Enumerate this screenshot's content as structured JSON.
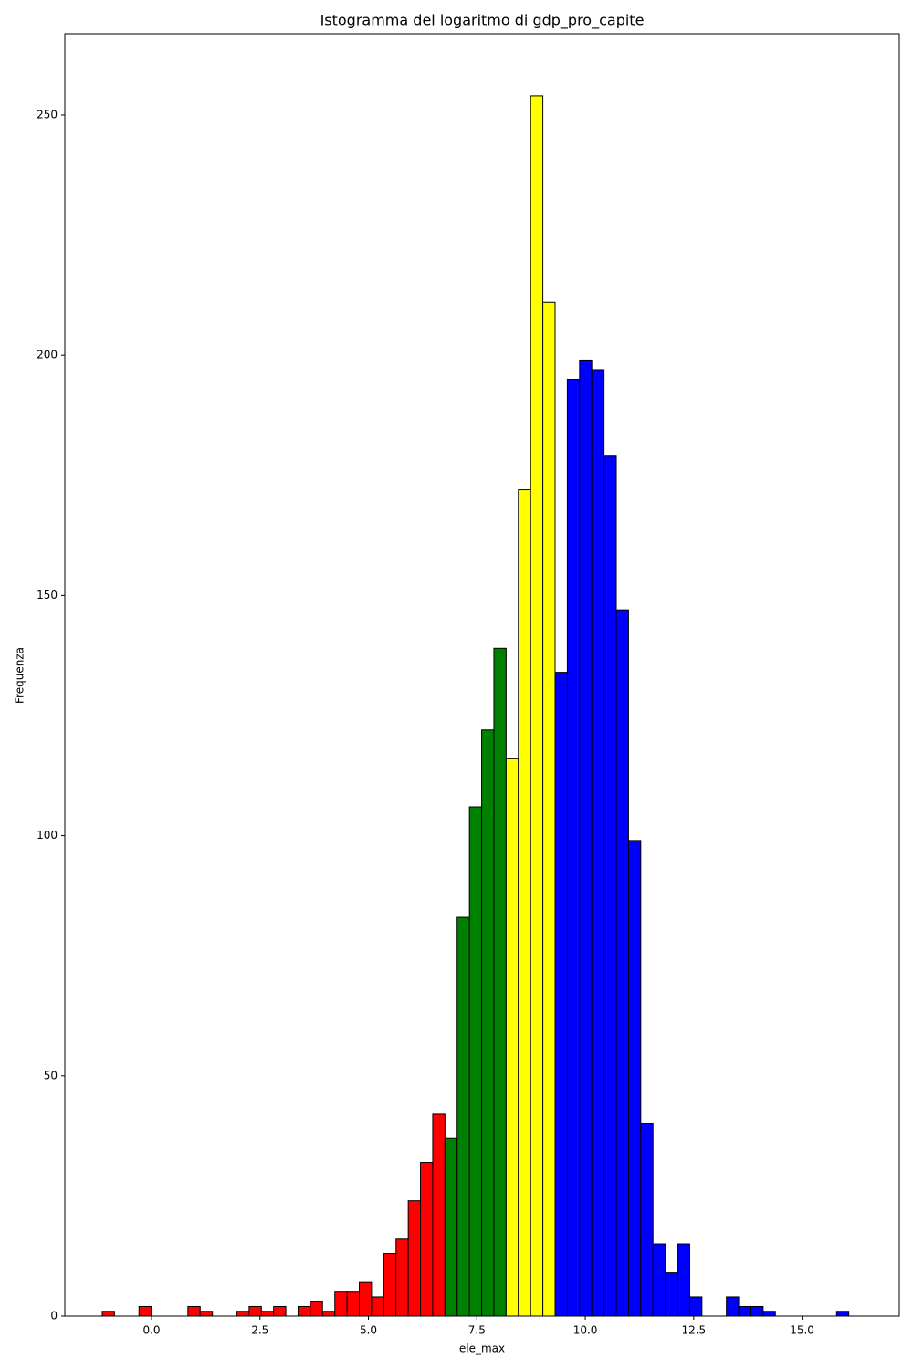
{
  "chart_data": {
    "type": "histogram",
    "title": "Istogramma del logaritmo di gdp_pro_capite",
    "x_label": "ele_max",
    "y_label": "Frequenza",
    "bins": [
      -1.137,
      -0.855,
      -0.572,
      -0.29,
      -0.008,
      0.274,
      0.556,
      0.838,
      1.121,
      1.403,
      1.685,
      1.967,
      2.249,
      2.532,
      2.814,
      3.096,
      3.378,
      3.66,
      3.942,
      4.225,
      4.507,
      4.789,
      5.071,
      5.353,
      5.636,
      5.918,
      6.2,
      6.482,
      6.764,
      7.046,
      7.329,
      7.611,
      7.893,
      8.175,
      8.457,
      8.74,
      9.022,
      9.304,
      9.586,
      9.868,
      10.15,
      10.433,
      10.715,
      10.997,
      11.279,
      11.561,
      11.844,
      12.126,
      12.408,
      12.69,
      12.972,
      13.254,
      13.537,
      13.819,
      14.101,
      14.383,
      14.665,
      14.948,
      15.23,
      15.512,
      15.794,
      16.076,
      16.358
    ],
    "values": [
      1,
      0,
      0,
      2,
      0,
      0,
      0,
      2,
      1,
      0,
      0,
      1,
      2,
      1,
      2,
      0,
      2,
      3,
      1,
      5,
      5,
      7,
      4,
      13,
      16,
      24,
      32,
      42,
      37,
      83,
      106,
      122,
      139,
      116,
      172,
      254,
      211,
      134,
      195,
      199,
      197,
      179,
      147,
      99,
      40,
      15,
      9,
      15,
      4,
      0,
      0,
      4,
      2,
      2,
      1,
      0,
      0,
      0,
      0,
      0,
      1,
      0
    ],
    "colors": [
      "red",
      "red",
      "red",
      "red",
      "red",
      "red",
      "red",
      "red",
      "red",
      "red",
      "red",
      "red",
      "red",
      "red",
      "red",
      "red",
      "red",
      "red",
      "red",
      "red",
      "red",
      "red",
      "red",
      "red",
      "red",
      "red",
      "red",
      "red",
      "green",
      "green",
      "green",
      "green",
      "green",
      "yellow",
      "yellow",
      "yellow",
      "yellow",
      "blue",
      "blue",
      "blue",
      "blue",
      "blue",
      "blue",
      "blue",
      "blue",
      "blue",
      "blue",
      "blue",
      "blue",
      "blue",
      "blue",
      "blue",
      "blue",
      "blue",
      "blue",
      "blue",
      "blue",
      "blue",
      "blue",
      "blue",
      "blue",
      "blue"
    ],
    "edge_color": "black",
    "xlim": [
      -2.0,
      17.24
    ],
    "ylim": [
      0,
      266.9
    ],
    "xticks": [
      {
        "value": 0,
        "label": "0.0"
      },
      {
        "value": 2.5,
        "label": "2.5"
      },
      {
        "value": 5,
        "label": "5.0"
      },
      {
        "value": 7.5,
        "label": "7.5"
      },
      {
        "value": 10,
        "label": "10.0"
      },
      {
        "value": 12.5,
        "label": "12.5"
      },
      {
        "value": 15,
        "label": "15.0"
      }
    ],
    "yticks": [
      0,
      50,
      100,
      150,
      200,
      250
    ]
  }
}
